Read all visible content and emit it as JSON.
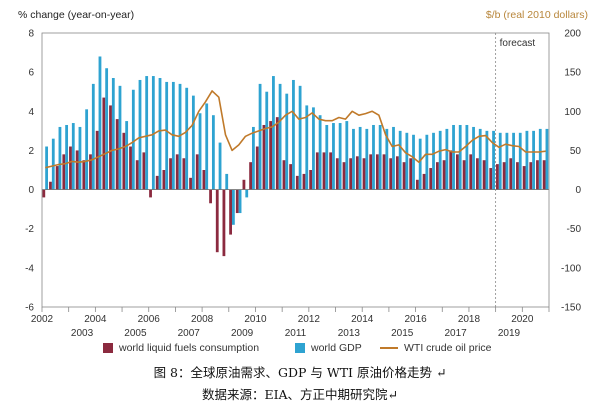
{
  "chart_data": {
    "type": "bar+line",
    "left_axis_title": "% change (year-on-year)",
    "right_axis_title": "$/b (real 2010 dollars)",
    "forecast_label": "forecast",
    "left_ylim": [
      -6,
      8
    ],
    "left_ticks": [
      "8",
      "6",
      "4",
      "2",
      "0",
      "-2",
      "-4",
      "-6"
    ],
    "right_ylim": [
      -150,
      200
    ],
    "right_ticks": [
      "200",
      "150",
      "100",
      "50",
      "0",
      "-50",
      "-100",
      "-150"
    ],
    "years_top_row": [
      "2002",
      "2004",
      "2006",
      "2008",
      "2010",
      "2012",
      "2014",
      "2016",
      "2018",
      "2020"
    ],
    "years_bottom_row": [
      "2003",
      "2005",
      "2007",
      "2009",
      "2011",
      "2013",
      "2015",
      "2017",
      "2019"
    ],
    "x_range_quarters": [
      2002.0,
      2021.0
    ],
    "forecast_start": 2019.0,
    "colors": {
      "consumption": "#8b2a3f",
      "gdp": "#2ea3d1",
      "oil": "#c07a2a",
      "right_axis": "#b8863b",
      "forecast_line": "#888888"
    },
    "quarters": [
      "2002Q1",
      "2002Q2",
      "2002Q3",
      "2002Q4",
      "2003Q1",
      "2003Q2",
      "2003Q3",
      "2003Q4",
      "2004Q1",
      "2004Q2",
      "2004Q3",
      "2004Q4",
      "2005Q1",
      "2005Q2",
      "2005Q3",
      "2005Q4",
      "2006Q1",
      "2006Q2",
      "2006Q3",
      "2006Q4",
      "2007Q1",
      "2007Q2",
      "2007Q3",
      "2007Q4",
      "2008Q1",
      "2008Q2",
      "2008Q3",
      "2008Q4",
      "2009Q1",
      "2009Q2",
      "2009Q3",
      "2009Q4",
      "2010Q1",
      "2010Q2",
      "2010Q3",
      "2010Q4",
      "2011Q1",
      "2011Q2",
      "2011Q3",
      "2011Q4",
      "2012Q1",
      "2012Q2",
      "2012Q3",
      "2012Q4",
      "2013Q1",
      "2013Q2",
      "2013Q3",
      "2013Q4",
      "2014Q1",
      "2014Q2",
      "2014Q3",
      "2014Q4",
      "2015Q1",
      "2015Q2",
      "2015Q3",
      "2015Q4",
      "2016Q1",
      "2016Q2",
      "2016Q3",
      "2016Q4",
      "2017Q1",
      "2017Q2",
      "2017Q3",
      "2017Q4",
      "2018Q1",
      "2018Q2",
      "2018Q3",
      "2018Q4",
      "2019Q1",
      "2019Q2",
      "2019Q3",
      "2019Q4",
      "2020Q1",
      "2020Q2",
      "2020Q3",
      "2020Q4"
    ],
    "series": [
      {
        "name": "world liquid fuels consumption",
        "type": "bar",
        "values": [
          -0.4,
          0.4,
          1.2,
          1.8,
          2.2,
          2.0,
          1.5,
          1.8,
          3.0,
          4.7,
          4.3,
          3.6,
          2.9,
          2.2,
          1.5,
          1.9,
          -0.4,
          0.7,
          1.0,
          1.6,
          1.8,
          1.6,
          0.6,
          1.8,
          1.0,
          -0.7,
          -3.2,
          -3.4,
          -2.3,
          -1.2,
          0.5,
          1.4,
          2.2,
          3.3,
          3.5,
          3.7,
          1.5,
          1.3,
          0.7,
          0.8,
          1.0,
          1.9,
          1.9,
          1.9,
          1.6,
          1.4,
          1.6,
          1.7,
          1.6,
          1.8,
          1.8,
          1.8,
          1.6,
          1.7,
          1.4,
          1.6,
          0.5,
          0.8,
          1.1,
          1.4,
          1.5,
          2.0,
          1.8,
          1.5,
          1.8,
          1.6,
          1.5,
          1.1,
          1.3,
          1.4,
          1.6,
          1.4,
          1.2,
          1.4,
          1.5,
          1.5
        ]
      },
      {
        "name": "world GDP",
        "type": "bar",
        "values": [
          2.2,
          2.6,
          3.2,
          3.3,
          3.4,
          3.2,
          4.1,
          5.4,
          6.8,
          6.2,
          5.7,
          5.3,
          3.5,
          5.1,
          5.6,
          5.8,
          5.8,
          5.7,
          5.5,
          5.5,
          5.4,
          5.2,
          4.8,
          3.9,
          4.4,
          3.8,
          2.4,
          0.8,
          -1.8,
          -1.2,
          -0.4,
          3.2,
          5.4,
          5.0,
          5.8,
          5.4,
          4.9,
          5.6,
          5.3,
          4.3,
          4.2,
          3.8,
          3.3,
          3.4,
          3.4,
          3.5,
          3.1,
          3.2,
          3.1,
          3.3,
          3.3,
          3.1,
          3.2,
          3.0,
          2.9,
          2.8,
          2.6,
          2.8,
          2.9,
          3.0,
          3.1,
          3.3,
          3.3,
          3.3,
          3.2,
          3.1,
          3.0,
          3.0,
          2.9,
          2.9,
          2.9,
          2.9,
          3.0,
          3.0,
          3.1,
          3.1
        ]
      },
      {
        "name": "WTI crude oil price",
        "type": "line",
        "values": [
          28,
          30,
          32,
          33,
          36,
          35,
          36,
          38,
          42,
          46,
          50,
          52,
          55,
          60,
          66,
          68,
          70,
          75,
          76,
          70,
          68,
          73,
          82,
          100,
          112,
          126,
          118,
          70,
          50,
          57,
          68,
          72,
          75,
          78,
          80,
          86,
          95,
          100,
          90,
          92,
          98,
          90,
          88,
          88,
          92,
          90,
          100,
          95,
          97,
          100,
          95,
          70,
          55,
          57,
          47,
          42,
          35,
          45,
          45,
          49,
          51,
          48,
          48,
          55,
          63,
          68,
          69,
          60,
          54,
          58,
          56,
          55,
          48,
          48,
          48,
          49
        ]
      }
    ]
  },
  "legend": {
    "consumption": "world liquid fuels consumption",
    "gdp": "world GDP",
    "oil": "WTI crude oil price"
  },
  "caption": {
    "line1": "图 8：全球原油需求、GDP 与 WTI 原油价格走势 ↵",
    "line2": "数据来源：EIA、方正中期研究院↵"
  }
}
